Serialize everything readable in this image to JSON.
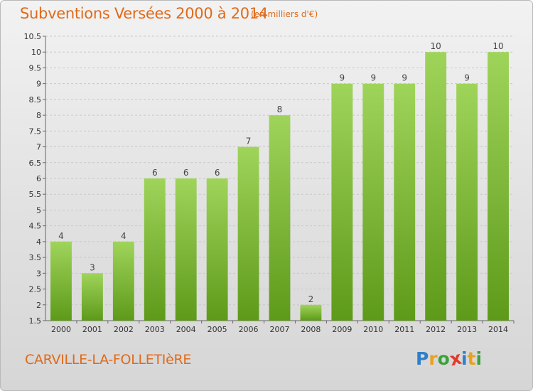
{
  "header": {
    "title": "Subventions Versées 2000 à 2014",
    "subtitle": "(en milliers d'€)"
  },
  "footer": {
    "commune": "CARVILLE-LA-FOLLETIèRE",
    "logo_letters": [
      "P",
      "r",
      "o",
      "x",
      "i",
      "t",
      "i"
    ],
    "logo_colors": [
      "#2f7fc8",
      "#e8a21c",
      "#3aa23a",
      "#e23a2a",
      "#2f7fc8",
      "#e8a21c",
      "#3aa23a"
    ]
  },
  "colors": {
    "accent": "#e06a1a",
    "bar_top": "#9fd45a",
    "bar_bottom": "#5e9a1a",
    "grid": "#c8c8c8",
    "axis_text": "#333333"
  },
  "chart_data": {
    "type": "bar",
    "categories": [
      "2000",
      "2001",
      "2002",
      "2003",
      "2004",
      "2005",
      "2006",
      "2007",
      "2008",
      "2009",
      "2010",
      "2011",
      "2012",
      "2013",
      "2014"
    ],
    "values": [
      4,
      3,
      4,
      6,
      6,
      6,
      7,
      8,
      2,
      9,
      9,
      9,
      10,
      9,
      10
    ],
    "data_labels": [
      "4",
      "3",
      "4",
      "6",
      "6",
      "6",
      "7",
      "8",
      "2",
      "9",
      "9",
      "9",
      "10",
      "9",
      "10"
    ],
    "ylim": [
      1.5,
      10.5
    ],
    "yticks": [
      1.5,
      2,
      2.5,
      3,
      3.5,
      4,
      4.5,
      5,
      5.5,
      6,
      6.5,
      7,
      7.5,
      8,
      8.5,
      9,
      9.5,
      10,
      10.5
    ],
    "ytick_labels": [
      "1.5",
      "2",
      "2.5",
      "3",
      "3.5",
      "4",
      "4.5",
      "5",
      "5.5",
      "6",
      "6.5",
      "7",
      "7.5",
      "8",
      "8.5",
      "9",
      "9.5",
      "10",
      "10.5"
    ],
    "grid": "horizontal dashed",
    "legend": "none"
  }
}
